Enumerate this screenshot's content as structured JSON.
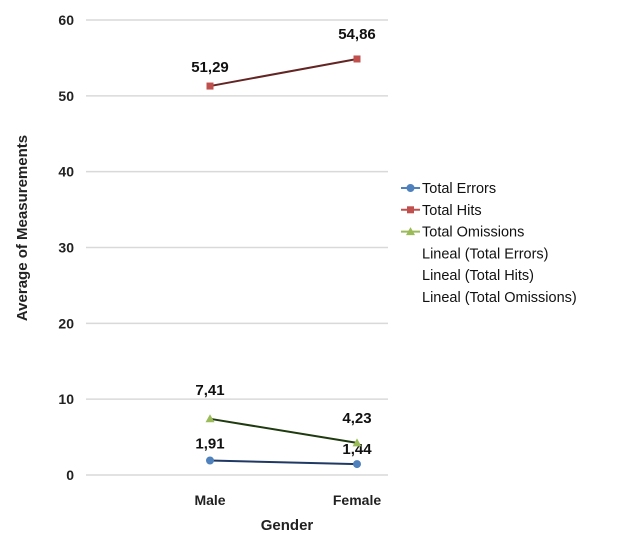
{
  "chart_data": {
    "type": "line",
    "title": "",
    "xlabel": "Gender",
    "ylabel": "Average of Measurements",
    "categories": [
      "Male",
      "Female"
    ],
    "ylim": [
      0,
      60
    ],
    "yticks": [
      0,
      10,
      20,
      30,
      40,
      50,
      60
    ],
    "grid": true,
    "legend_position": "right",
    "series": [
      {
        "name": "Total Errors",
        "values": [
          1.91,
          1.44
        ],
        "labels": [
          "1,91",
          "1,44"
        ],
        "color": "#4f81bd",
        "line_color": "#1f3864",
        "marker": "circle"
      },
      {
        "name": "Total Hits",
        "values": [
          51.29,
          54.86
        ],
        "labels": [
          "51,29",
          "54,86"
        ],
        "color": "#c0504d",
        "line_color": "#632523",
        "marker": "square"
      },
      {
        "name": "Total Omissions",
        "values": [
          7.41,
          4.23
        ],
        "labels": [
          "7,41",
          "4,23"
        ],
        "color": "#9bbb59",
        "line_color": "#1e3a0e",
        "marker": "triangle"
      }
    ],
    "trendlines": [
      {
        "name": "Lineal (Total Errors)"
      },
      {
        "name": "Lineal (Total Hits)"
      },
      {
        "name": "Lineal (Total Omissions)"
      }
    ]
  }
}
